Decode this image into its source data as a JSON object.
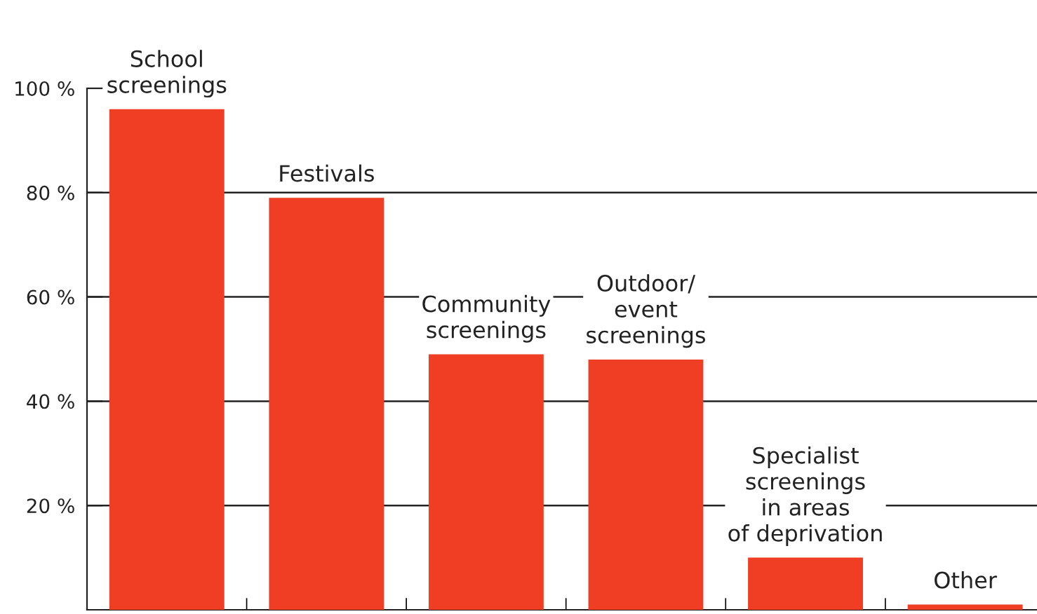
{
  "chart_data": {
    "type": "bar",
    "categories": [
      "School\nscreenings",
      "Festivals",
      "Community\nscreenings",
      "Outdoor/\nevent\nscreenings",
      "Specialist\nscreenings\nin areas\nof deprivation",
      "Other"
    ],
    "values": [
      96,
      79,
      49,
      48,
      10,
      1
    ],
    "color": "#ef3e24",
    "ylim": [
      0,
      100
    ],
    "yticks": [
      {
        "value": 20,
        "label": "20 %"
      },
      {
        "value": 40,
        "label": "40 %"
      },
      {
        "value": 60,
        "label": "60 %"
      },
      {
        "value": 80,
        "label": "80 %"
      },
      {
        "value": 100,
        "label": "100 %"
      }
    ],
    "grid": "y"
  }
}
